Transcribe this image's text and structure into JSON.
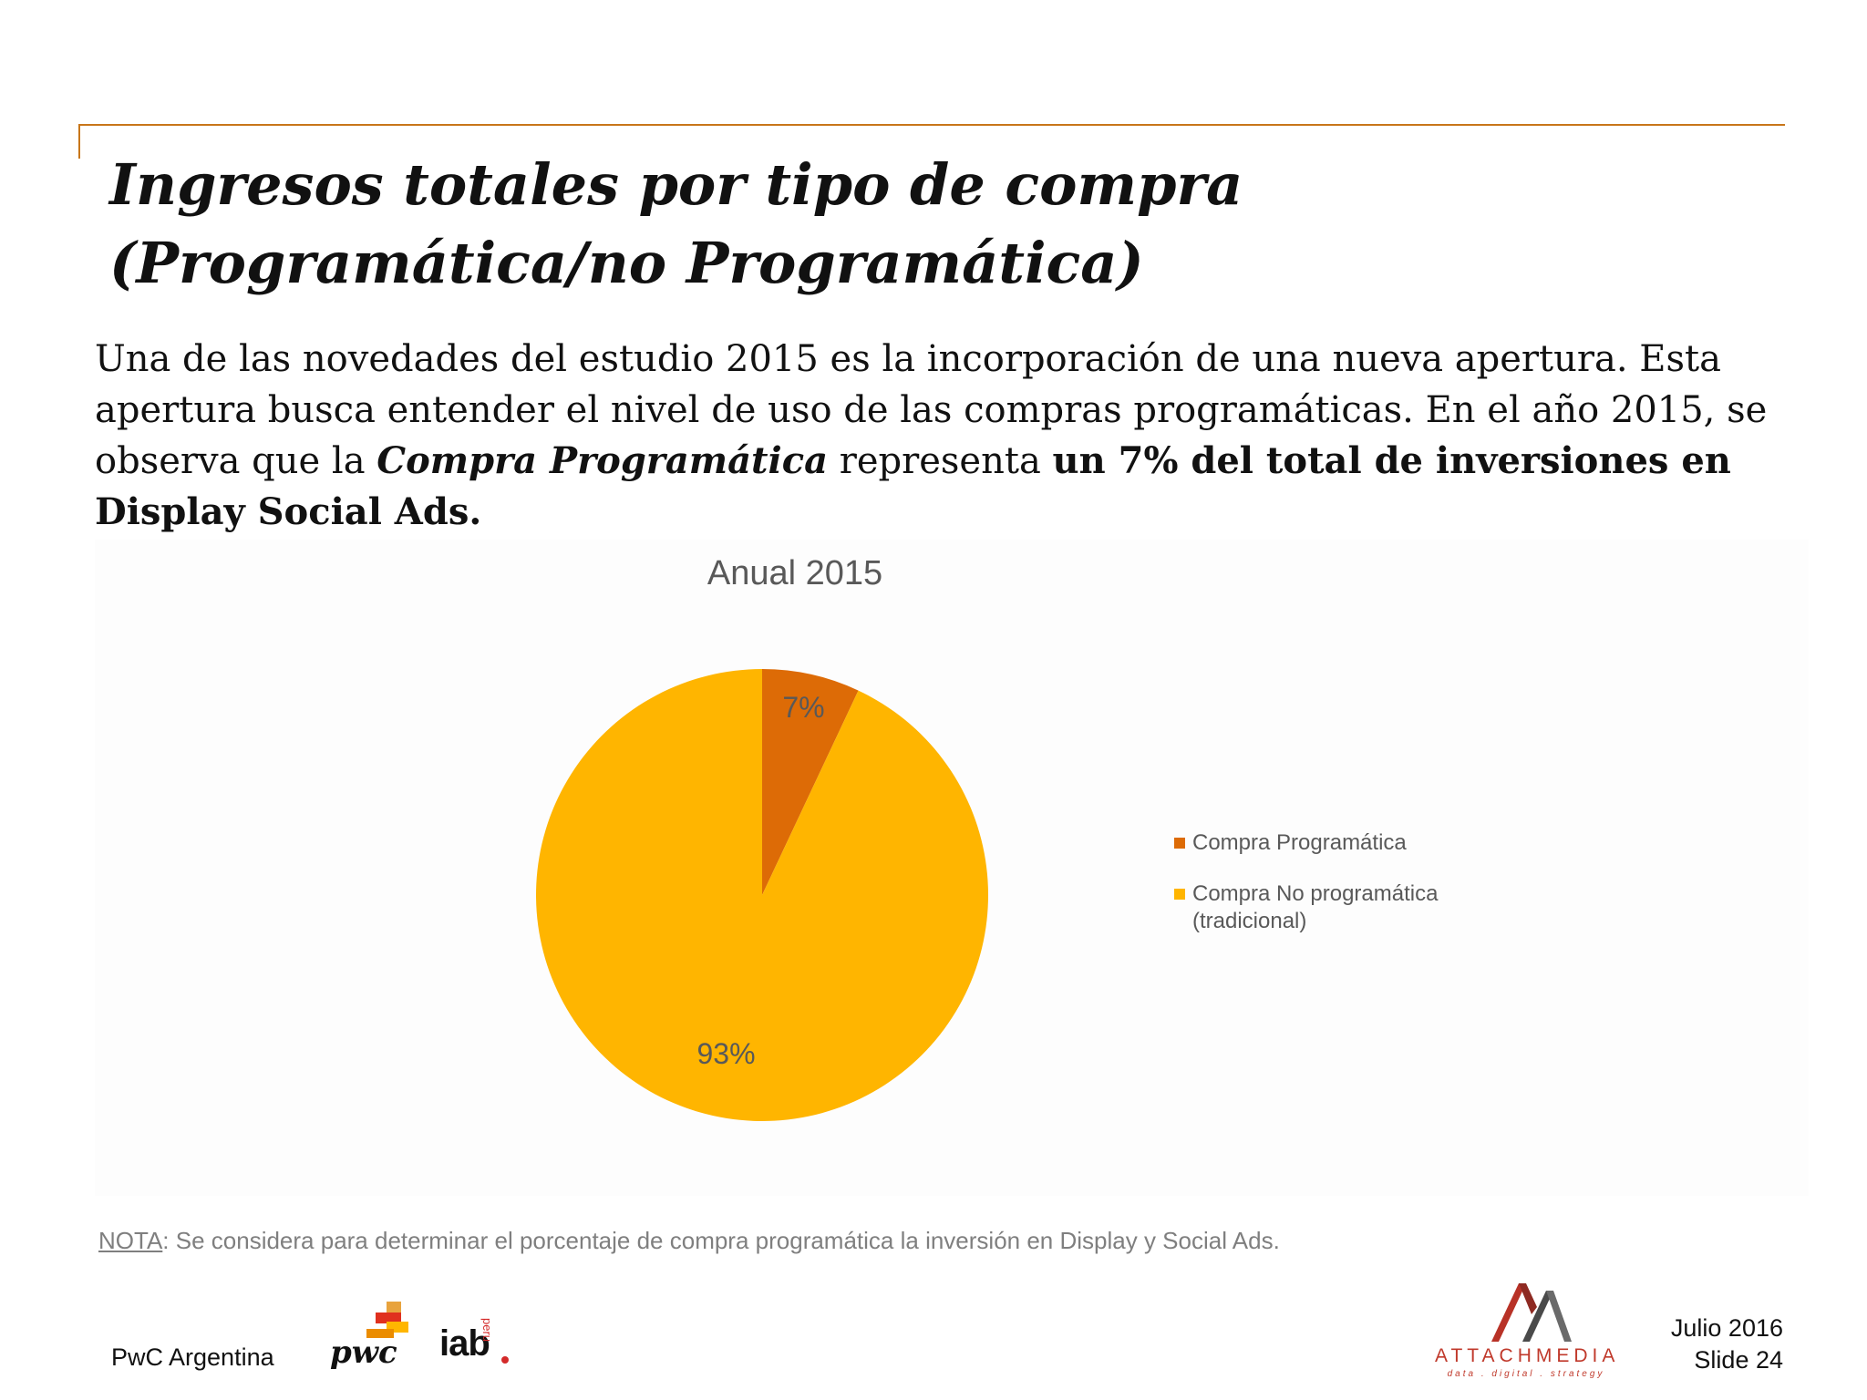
{
  "slide": {
    "title_line1": "Ingresos totales por tipo de compra",
    "title_line2": "(Programática/no Programática)",
    "body": {
      "p1": "Una de las novedades del estudio 2015 es la incorporación de una nueva apertura. Esta apertura busca entender el nivel de uso de las compras programáticas. En el año 2015, se observa que la ",
      "emph_italic": "Compra Programática",
      "p2": " representa ",
      "emph_bold": "un 7% del total de inversiones en Display Social Ads."
    },
    "note": {
      "label": "NOTA",
      "text": ": Se considera para determinar el porcentaje de compra programática la inversión en Display y Social Ads."
    },
    "footer": {
      "org": "PwC Argentina",
      "date": "Julio 2016",
      "slide_number": "Slide 24"
    },
    "logos": {
      "pwc": "pwc",
      "iab": "iab",
      "iab_sub": "peru",
      "attach_name": "ATTACHMEDIA",
      "attach_tagline": "data . digital . strategy"
    }
  },
  "chart_data": {
    "type": "pie",
    "title": "Anual 2015",
    "series": [
      {
        "name": "Compra Programática",
        "value": 7,
        "label": "7%",
        "color": "#dd6b06"
      },
      {
        "name": "Compra No programática (tradicional)",
        "value": 93,
        "label": "93%",
        "color": "#ffb500"
      }
    ],
    "legend_position": "right",
    "label_color": "#595959"
  },
  "colors": {
    "accent": "#c8761a",
    "text": "#111111",
    "muted": "#7f7f7f",
    "attach_red": "#c0392b"
  }
}
